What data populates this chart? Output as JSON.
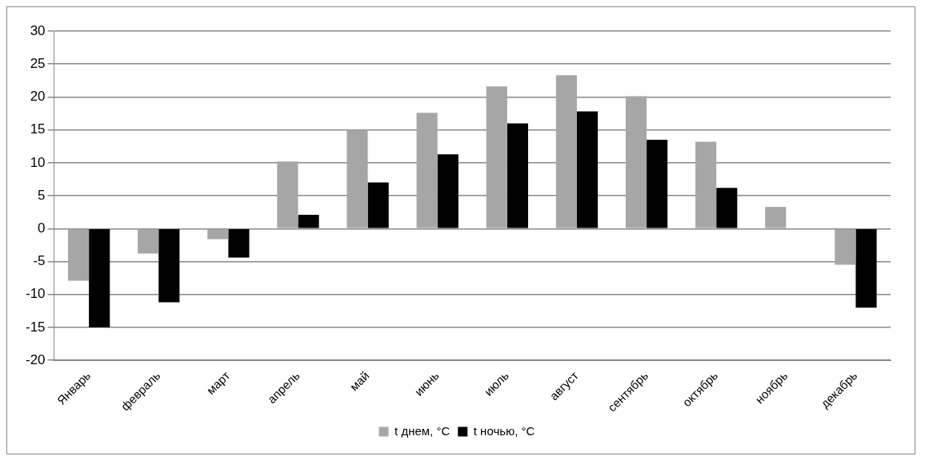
{
  "chart_data": {
    "type": "bar",
    "categories": [
      "Январь",
      "февраль",
      "март",
      "апрель",
      "май",
      "июнь",
      "июль",
      "август",
      "сентябрь",
      "октябрь",
      "ноябрь",
      "декабрь"
    ],
    "series": [
      {
        "name": "t днем, °C",
        "color": "#a6a6a6",
        "values": [
          -7.9,
          -3.8,
          -1.6,
          10.2,
          15.0,
          17.6,
          21.6,
          23.3,
          20.1,
          13.2,
          3.3,
          -5.5
        ]
      },
      {
        "name": "t ночью, °C",
        "color": "#000000",
        "values": [
          -15.0,
          -11.2,
          -4.4,
          2.1,
          7.0,
          11.3,
          16.0,
          17.8,
          13.5,
          6.2,
          null,
          -12.0
        ]
      }
    ],
    "ylim": [
      -20,
      30
    ],
    "yticks": [
      -20,
      -15,
      -10,
      -5,
      0,
      5,
      10,
      15,
      20,
      25,
      30
    ],
    "grid": "y",
    "legend": "bottom"
  }
}
